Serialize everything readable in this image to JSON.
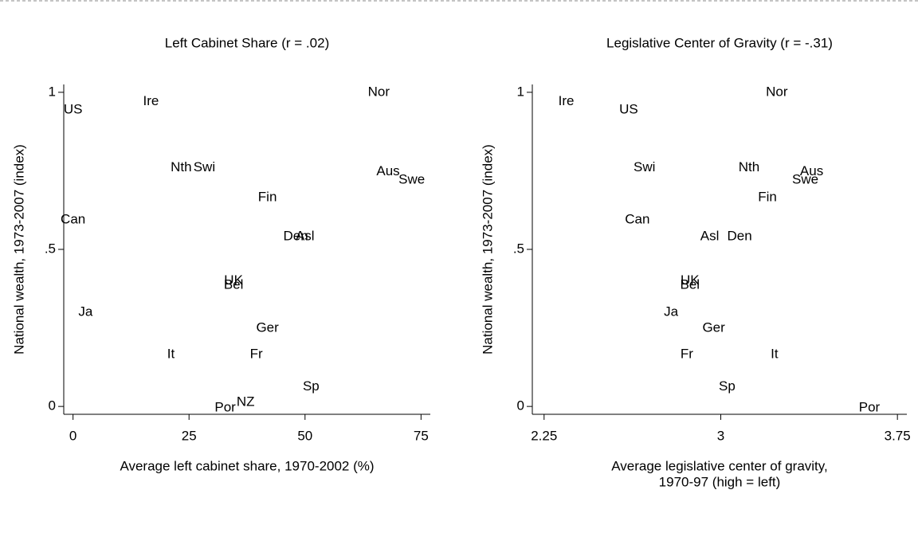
{
  "chart_data": [
    {
      "type": "scatter",
      "title": "Left Cabinet Share (r = .02)",
      "x_label": [
        "Average left cabinet share, 1970-2002 (%)"
      ],
      "y_label": "National wealth, 1973-2007 (index)",
      "xlim": [
        -2,
        77
      ],
      "ylim": [
        -0.025,
        1.025
      ],
      "xticks": [
        0,
        25,
        50,
        75
      ],
      "yticks": [
        0,
        {
          "value": 0.5,
          "label": ".5"
        },
        1
      ],
      "labels": [
        "Nor",
        "US",
        "Ire",
        "Nth",
        "Swi",
        "Aus",
        "Swe",
        "Fin",
        "Can",
        "Den",
        "Asl",
        "UK",
        "Bel",
        "Ja",
        "Ger",
        "It",
        "Fr",
        "Sp",
        "Por",
        "NZ"
      ],
      "x": [
        65.9,
        0,
        16.8,
        23.3,
        28.3,
        67.9,
        73,
        41.9,
        0,
        48,
        50,
        34.6,
        34.6,
        2.7,
        41.9,
        21.1,
        39.5,
        51.3,
        32.8,
        37.2
      ],
      "y": [
        1,
        0.944,
        0.97,
        0.76,
        0.76,
        0.747,
        0.72,
        0.665,
        0.594,
        0.54,
        0.54,
        0.4,
        0.386,
        0.3,
        0.249,
        0.165,
        0.165,
        0.063,
        -0.005,
        0.013
      ],
      "color": "#000000"
    },
    {
      "type": "scatter",
      "title": "Legislative Center of Gravity (r = -.31)",
      "x_label": [
        "Average legislative center of gravity,",
        "1970-97 (high = left)"
      ],
      "y_label": "National wealth, 1973-2007 (index)",
      "xlim": [
        2.2,
        3.79
      ],
      "ylim": [
        -0.025,
        1.025
      ],
      "xticks": [
        2.25,
        3,
        3.75
      ],
      "yticks": [
        0,
        {
          "value": 0.5,
          "label": ".5"
        },
        1
      ],
      "labels": [
        "Ire",
        "US",
        "Nor",
        "Swi",
        "Nth",
        "Aus",
        "Swe",
        "Fin",
        "Can",
        "Asl",
        "Den",
        "UK",
        "Bel",
        "Ja",
        "Ger",
        "Fr",
        "It",
        "Sp",
        "Por"
      ],
      "x": [
        2.344,
        2.609,
        3.238,
        2.676,
        3.12,
        3.386,
        3.359,
        3.198,
        2.646,
        2.953,
        3.08,
        2.869,
        2.869,
        2.789,
        2.97,
        2.856,
        3.228,
        3.027,
        3.631
      ],
      "y": [
        0.97,
        0.944,
        1,
        0.76,
        0.76,
        0.747,
        0.72,
        0.665,
        0.594,
        0.54,
        0.54,
        0.4,
        0.386,
        0.3,
        0.249,
        0.165,
        0.165,
        0.063,
        -0.005
      ],
      "color": "#000000"
    }
  ]
}
